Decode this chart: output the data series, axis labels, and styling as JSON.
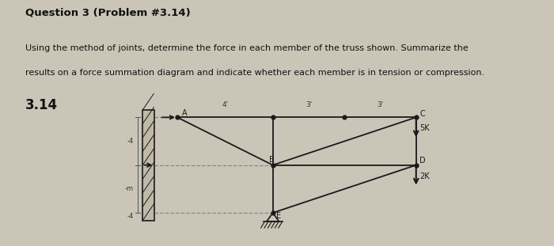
{
  "title": "Question 3 (Problem #3.14)",
  "body_text_line1": "Using the method of joints, determine the force in each member of the truss shown. Summarize the",
  "body_text_line2": "results on a force summation diagram and indicate whether each member is in tension or compression.",
  "problem_number": "3.14",
  "bg_color": "#cbc5b8",
  "text_color": "#111111",
  "dark": "#1a1a1a",
  "dim_labels_top": [
    "4'",
    "3'",
    "3'"
  ],
  "dim_labels_left_top": "-4",
  "dim_labels_left_mid": "-m",
  "dim_labels_left_bot": "-4",
  "load_right_label": "5K",
  "load_bot_label": "2K",
  "node_A_label": "A",
  "node_B_label": "B",
  "node_C_label": "C",
  "node_D_label": "D",
  "node_E_label": "E",
  "wall_hatch_color": "#555555",
  "member_color": "#1a1a1a",
  "dashed_color": "#888888",
  "arrow_color": "#1a1a1a"
}
